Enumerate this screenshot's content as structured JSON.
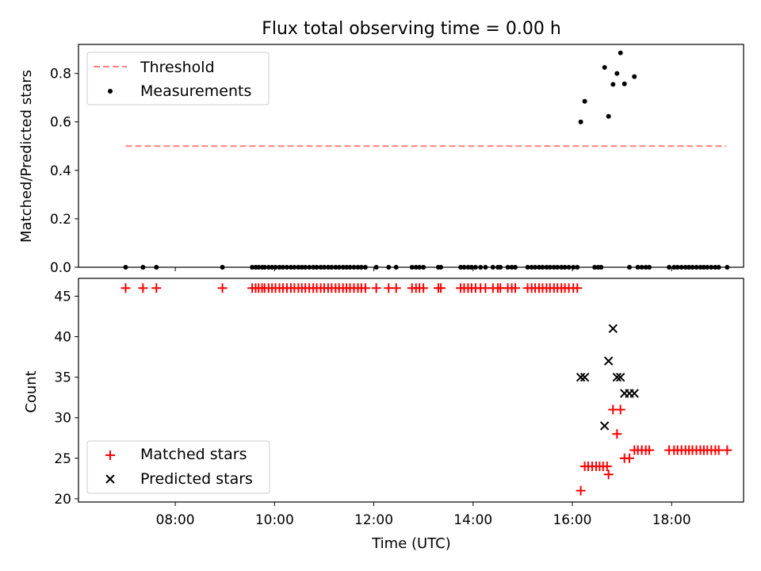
{
  "chart_data": [
    {
      "type": "scatter",
      "title": "Flux total observing time = 0.00 h",
      "ylabel": "Matched/Predicted stars",
      "xlabel": "",
      "ylim": [
        0.0,
        0.92
      ],
      "yticks": [
        0.0,
        0.2,
        0.4,
        0.6,
        0.8
      ],
      "ytick_labels": [
        "0.0",
        "0.2",
        "0.4",
        "0.6",
        "0.8"
      ],
      "legend_position": "upper-left",
      "threshold": {
        "label": "Threshold",
        "value": 0.5,
        "x_range": [
          7.0,
          19.1
        ],
        "color": "#ff8080"
      },
      "series": [
        {
          "name": "Measurements",
          "color": "#000000",
          "marker": "dot",
          "x": [
            7.0,
            7.35,
            7.62,
            8.95,
            9.55,
            9.62,
            9.68,
            9.75,
            9.8,
            9.88,
            9.95,
            10.02,
            10.1,
            10.17,
            10.25,
            10.33,
            10.4,
            10.48,
            10.55,
            10.62,
            10.7,
            10.78,
            10.85,
            10.93,
            11.0,
            11.08,
            11.15,
            11.23,
            11.3,
            11.38,
            11.45,
            11.52,
            11.6,
            11.68,
            11.75,
            11.83,
            12.05,
            12.3,
            12.45,
            12.77,
            12.85,
            12.92,
            13.0,
            13.3,
            13.35,
            13.75,
            13.82,
            13.9,
            13.97,
            14.05,
            14.15,
            14.25,
            14.4,
            14.5,
            14.55,
            14.7,
            14.78,
            14.85,
            15.1,
            15.18,
            15.25,
            15.33,
            15.4,
            15.48,
            15.55,
            15.63,
            15.7,
            15.78,
            15.85,
            15.93,
            16.02,
            16.1,
            16.17,
            16.25,
            16.45,
            16.52,
            16.58,
            16.65,
            16.73,
            16.82,
            16.9,
            16.97,
            17.05,
            17.15,
            17.25,
            17.32,
            17.4,
            17.48,
            17.55,
            17.95,
            18.05,
            18.12,
            18.2,
            18.28,
            18.35,
            18.42,
            18.5,
            18.58,
            18.65,
            18.72,
            18.8,
            18.88,
            18.95,
            19.12
          ],
          "y": [
            0,
            0,
            0,
            0,
            0,
            0,
            0,
            0,
            0,
            0,
            0,
            0,
            0,
            0,
            0,
            0,
            0,
            0,
            0,
            0,
            0,
            0,
            0,
            0,
            0,
            0,
            0,
            0,
            0,
            0,
            0,
            0,
            0,
            0,
            0,
            0,
            0,
            0,
            0,
            0,
            0,
            0,
            0,
            0,
            0,
            0,
            0,
            0,
            0,
            0,
            0,
            0,
            0,
            0,
            0,
            0,
            0,
            0,
            0,
            0,
            0,
            0,
            0,
            0,
            0,
            0,
            0,
            0,
            0,
            0,
            0,
            0,
            0.6,
            0.685,
            0,
            0,
            0,
            0.825,
            0.623,
            0.755,
            0.8,
            0.885,
            0.757,
            0,
            0.787,
            0,
            0,
            0,
            0,
            0,
            0,
            0,
            0,
            0,
            0,
            0,
            0,
            0,
            0,
            0,
            0,
            0,
            0,
            0
          ]
        }
      ]
    },
    {
      "type": "scatter",
      "title": "",
      "xlabel": "Time (UTC)",
      "ylabel": "Count",
      "ylim": [
        19.6,
        47.2
      ],
      "xlim": [
        6.05,
        19.45
      ],
      "yticks": [
        20,
        25,
        30,
        35,
        40,
        45
      ],
      "ytick_labels": [
        "20",
        "25",
        "30",
        "35",
        "40",
        "45"
      ],
      "xticks": [
        8,
        10,
        12,
        14,
        16,
        18
      ],
      "xtick_labels": [
        "08:00",
        "10:00",
        "12:00",
        "14:00",
        "16:00",
        "18:00"
      ],
      "legend_position": "lower-left",
      "series": [
        {
          "name": "Matched stars",
          "color": "#ff0000",
          "marker": "plus",
          "x": [
            7.0,
            7.35,
            7.62,
            8.95,
            9.55,
            9.62,
            9.68,
            9.75,
            9.8,
            9.88,
            9.95,
            10.02,
            10.1,
            10.17,
            10.25,
            10.33,
            10.4,
            10.48,
            10.55,
            10.62,
            10.7,
            10.78,
            10.85,
            10.93,
            11.0,
            11.08,
            11.15,
            11.23,
            11.3,
            11.38,
            11.45,
            11.52,
            11.6,
            11.68,
            11.75,
            11.83,
            12.05,
            12.3,
            12.45,
            12.77,
            12.85,
            12.92,
            13.0,
            13.3,
            13.35,
            13.75,
            13.82,
            13.9,
            13.97,
            14.05,
            14.15,
            14.25,
            14.4,
            14.5,
            14.55,
            14.7,
            14.78,
            14.85,
            15.1,
            15.18,
            15.25,
            15.33,
            15.4,
            15.48,
            15.55,
            15.63,
            15.7,
            15.78,
            15.85,
            15.93,
            16.02,
            16.1,
            16.17,
            16.25,
            16.32,
            16.4,
            16.48,
            16.55,
            16.62,
            16.7,
            16.73,
            16.82,
            16.9,
            16.97,
            17.05,
            17.15,
            17.25,
            17.32,
            17.4,
            17.48,
            17.55,
            17.95,
            18.05,
            18.12,
            18.2,
            18.28,
            18.35,
            18.42,
            18.5,
            18.58,
            18.65,
            18.72,
            18.8,
            18.88,
            18.95,
            19.12
          ],
          "y": [
            46,
            46,
            46,
            46,
            46,
            46,
            46,
            46,
            46,
            46,
            46,
            46,
            46,
            46,
            46,
            46,
            46,
            46,
            46,
            46,
            46,
            46,
            46,
            46,
            46,
            46,
            46,
            46,
            46,
            46,
            46,
            46,
            46,
            46,
            46,
            46,
            46,
            46,
            46,
            46,
            46,
            46,
            46,
            46,
            46,
            46,
            46,
            46,
            46,
            46,
            46,
            46,
            46,
            46,
            46,
            46,
            46,
            46,
            46,
            46,
            46,
            46,
            46,
            46,
            46,
            46,
            46,
            46,
            46,
            46,
            46,
            46,
            21,
            24,
            24,
            24,
            24,
            24,
            24,
            24,
            23,
            31,
            28,
            31,
            25,
            25,
            26,
            26,
            26,
            26,
            26,
            26,
            26,
            26,
            26,
            26,
            26,
            26,
            26,
            26,
            26,
            26,
            26,
            26,
            26,
            26
          ]
        },
        {
          "name": "Predicted stars",
          "color": "#000000",
          "marker": "x",
          "x": [
            16.17,
            16.25,
            16.65,
            16.73,
            16.82,
            16.9,
            16.97,
            17.05,
            17.15,
            17.25
          ],
          "y": [
            35,
            35,
            29,
            37,
            41,
            35,
            35,
            33,
            33,
            33
          ]
        }
      ]
    }
  ]
}
